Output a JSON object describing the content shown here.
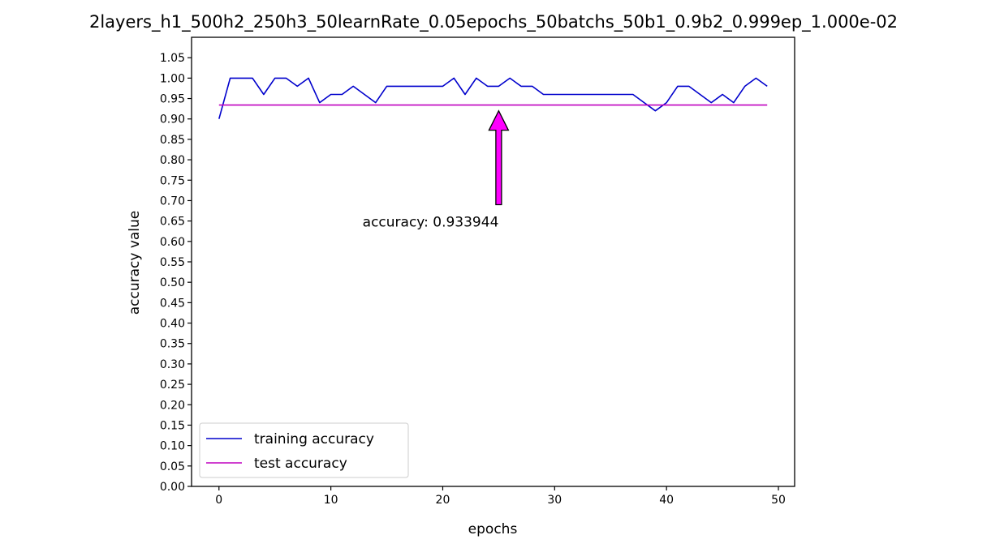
{
  "chart_data": {
    "type": "line",
    "title": "2layers_h1_500h2_250h3_50learnRate_0.05epochs_50batchs_50b1_0.9b2_0.999ep_1.000e-02",
    "xlabel": "epochs",
    "ylabel": "accuracy value",
    "xlim": [
      -2.45,
      51.45
    ],
    "ylim": [
      0,
      1.1
    ],
    "x_ticks": [
      0,
      10,
      20,
      30,
      40,
      50
    ],
    "y_ticks": [
      "0.00",
      "0.05",
      "0.10",
      "0.15",
      "0.20",
      "0.25",
      "0.30",
      "0.35",
      "0.40",
      "0.45",
      "0.50",
      "0.55",
      "0.60",
      "0.65",
      "0.70",
      "0.75",
      "0.80",
      "0.85",
      "0.90",
      "0.95",
      "1.00",
      "1.05"
    ],
    "grid": false,
    "legend_position": "lower-left",
    "series": [
      {
        "name": "training accuracy",
        "color": "#0000cc",
        "x": [
          0,
          1,
          2,
          3,
          4,
          5,
          6,
          7,
          8,
          9,
          10,
          11,
          12,
          13,
          14,
          15,
          16,
          17,
          18,
          19,
          20,
          21,
          22,
          23,
          24,
          25,
          26,
          27,
          28,
          29,
          30,
          31,
          32,
          33,
          34,
          35,
          36,
          37,
          38,
          39,
          40,
          41,
          42,
          43,
          44,
          45,
          46,
          47,
          48,
          49
        ],
        "y": [
          0.9,
          1.0,
          1.0,
          1.0,
          0.96,
          1.0,
          1.0,
          0.98,
          1.0,
          0.94,
          0.96,
          0.96,
          0.98,
          0.96,
          0.94,
          0.98,
          0.98,
          0.98,
          0.98,
          0.98,
          0.98,
          1.0,
          0.96,
          1.0,
          0.98,
          0.98,
          1.0,
          0.98,
          0.98,
          0.96,
          0.96,
          0.96,
          0.96,
          0.96,
          0.96,
          0.96,
          0.96,
          0.96,
          0.94,
          0.92,
          0.94,
          0.98,
          0.98,
          0.96,
          0.94,
          0.96,
          0.94,
          0.98,
          1.0,
          0.98
        ]
      },
      {
        "name": "test accuracy",
        "color": "#bf00bf",
        "x": [
          0,
          1,
          2,
          3,
          4,
          5,
          6,
          7,
          8,
          9,
          10,
          11,
          12,
          13,
          14,
          15,
          16,
          17,
          18,
          19,
          20,
          21,
          22,
          23,
          24,
          25,
          26,
          27,
          28,
          29,
          30,
          31,
          32,
          33,
          34,
          35,
          36,
          37,
          38,
          39,
          40,
          41,
          42,
          43,
          44,
          45,
          46,
          47,
          48,
          49
        ],
        "y": [
          0.933944,
          0.933944,
          0.933944,
          0.933944,
          0.933944,
          0.933944,
          0.933944,
          0.933944,
          0.933944,
          0.933944,
          0.933944,
          0.933944,
          0.933944,
          0.933944,
          0.933944,
          0.933944,
          0.933944,
          0.933944,
          0.933944,
          0.933944,
          0.933944,
          0.933944,
          0.933944,
          0.933944,
          0.933944,
          0.933944,
          0.933944,
          0.933944,
          0.933944,
          0.933944,
          0.933944,
          0.933944,
          0.933944,
          0.933944,
          0.933944,
          0.933944,
          0.933944,
          0.933944,
          0.933944,
          0.933944,
          0.933944,
          0.933944,
          0.933944,
          0.933944,
          0.933944,
          0.933944,
          0.933944,
          0.933944,
          0.933944,
          0.933944
        ]
      }
    ],
    "annotation": {
      "text": "accuracy: 0.933944",
      "arrow_tip": [
        25,
        0.92
      ],
      "arrow_tail": [
        25,
        0.69
      ],
      "color": "#ff00ff"
    }
  }
}
